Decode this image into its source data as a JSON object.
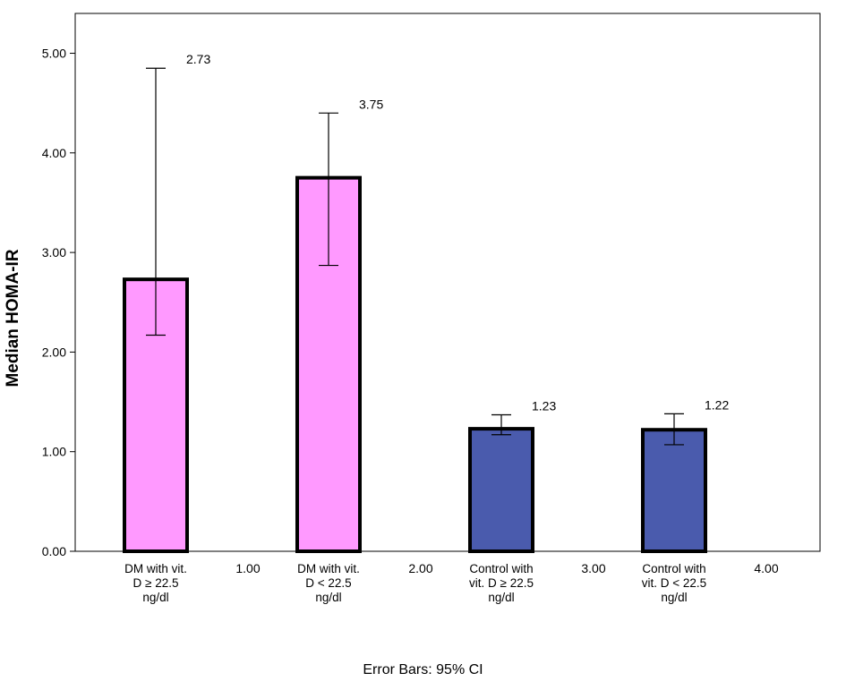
{
  "chart_data": {
    "type": "bar",
    "ylabel": "Median HOMA-IR",
    "ylim": [
      0,
      5.4
    ],
    "yticks": [
      "0.00",
      "1.00",
      "2.00",
      "3.00",
      "4.00",
      "5.00"
    ],
    "grid": false,
    "bars": [
      {
        "label_lines": [
          "DM with vit.",
          "D ≥ 22.5",
          "ng/dl"
        ],
        "value": 2.73,
        "data_label": "2.73",
        "ci_low": 2.17,
        "ci_high": 4.85,
        "color": "#ff99ff"
      },
      {
        "label_lines": [
          "DM with vit.",
          "D < 22.5",
          "ng/dl"
        ],
        "value": 3.75,
        "data_label": "3.75",
        "ci_low": 2.87,
        "ci_high": 4.4,
        "color": "#ff99ff"
      },
      {
        "label_lines": [
          "Control with",
          "vit. D ≥ 22.5",
          "ng/dl"
        ],
        "value": 1.23,
        "data_label": "1.23",
        "ci_low": 1.17,
        "ci_high": 1.37,
        "color": "#4a5bad"
      },
      {
        "label_lines": [
          "Control with",
          "vit. D < 22.5",
          "ng/dl"
        ],
        "value": 1.22,
        "data_label": "1.22",
        "ci_low": 1.07,
        "ci_high": 1.38,
        "color": "#4a5bad"
      }
    ],
    "x_ticks": [
      "1.00",
      "2.00",
      "3.00",
      "4.00"
    ]
  },
  "footnote": "Error Bars: 95% CI"
}
